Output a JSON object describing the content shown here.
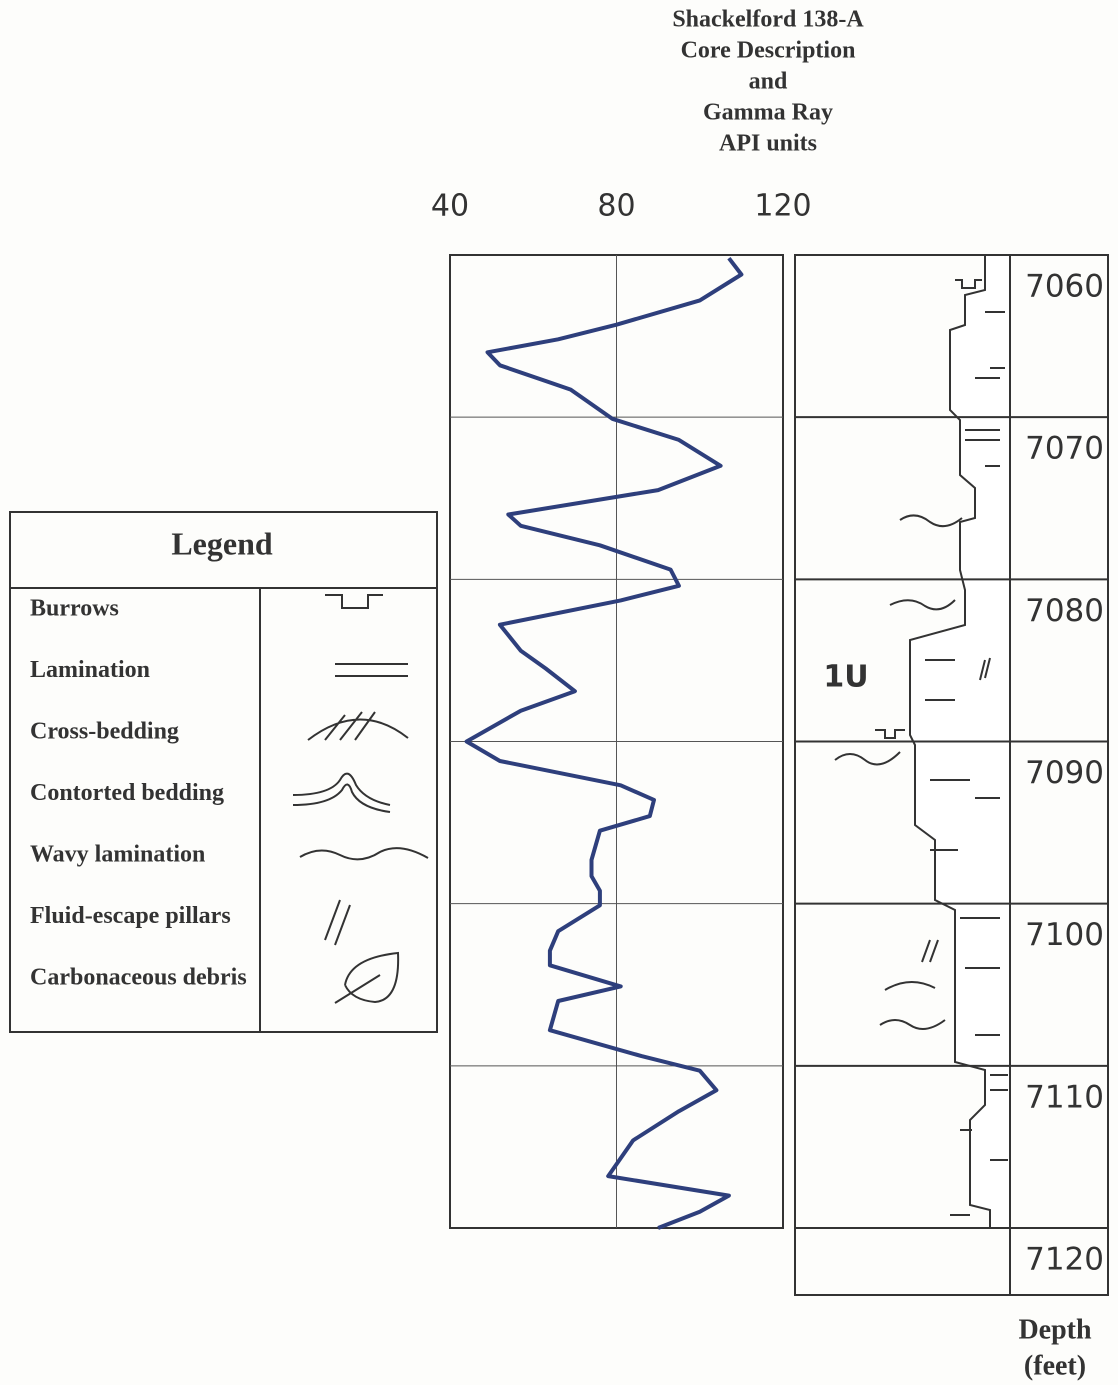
{
  "chart_data": {
    "type": "line",
    "title": [
      "Shackelford 138-A",
      "Core Description",
      "and",
      "Gamma Ray",
      "API units"
    ],
    "depth": [
      7060.2,
      7061.2,
      7062.8,
      7064.3,
      7065.2,
      7066.0,
      7066.8,
      7068.3,
      7070.1,
      7071.4,
      7073.0,
      7074.5,
      7076.0,
      7076.7,
      7077.9,
      7079.4,
      7080.4,
      7081.3,
      7082.8,
      7084.4,
      7085.5,
      7086.9,
      7088.1,
      7090.0,
      7091.2,
      7092.7,
      7093.6,
      7094.6,
      7095.5,
      7097.3,
      7098.3,
      7099.2,
      7100.1,
      7101.7,
      7102.9,
      7103.8,
      7105.1,
      7106.0,
      7107.8,
      7109.4,
      7110.3,
      7111.5,
      7112.8,
      7114.6,
      7116.8,
      7118.0,
      7119.0,
      7120.0
    ],
    "values": [
      107,
      110,
      100,
      80,
      66,
      49,
      52,
      69,
      79,
      95,
      105,
      90,
      54,
      57,
      76,
      93,
      95,
      81,
      52,
      57,
      63,
      70,
      57,
      44,
      52,
      81,
      89,
      88,
      76,
      74,
      74,
      76,
      76,
      66,
      64,
      64,
      81,
      66,
      64,
      86,
      100,
      104,
      95,
      84,
      78,
      107,
      100,
      90
    ],
    "color": "#2e3f7c",
    "xlim": [
      40,
      120
    ],
    "xticks": [
      40,
      80,
      120
    ],
    "ylim": [
      7060,
      7120
    ],
    "yticks": [
      7060,
      7070,
      7080,
      7090,
      7100,
      7110,
      7120
    ],
    "grid": true,
    "depth_label": [
      "Depth",
      "(feet)"
    ],
    "annotations": [
      "1U"
    ],
    "legend": {
      "title": "Legend",
      "items": [
        "Burrows",
        "Lamination",
        "Cross-bedding",
        "Contorted bedding",
        "Wavy lamination",
        "Fluid-escape pillars",
        "Carbonaceous debris"
      ]
    }
  }
}
